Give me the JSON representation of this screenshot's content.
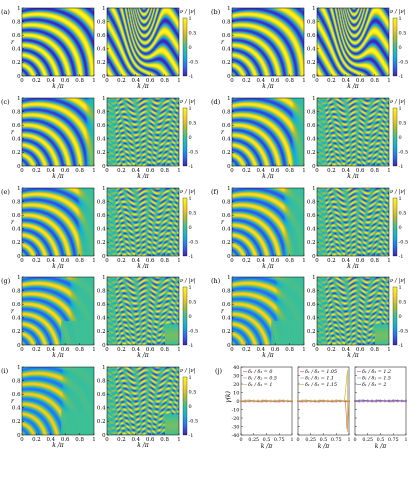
{
  "colors": {
    "cmap": [
      "#3e26a8",
      "#2d6ef4",
      "#15b1d3",
      "#3dbf96",
      "#b1bd2d",
      "#f9cf24",
      "#f9fb14"
    ],
    "bg_teal": "#2fb7b0",
    "axis": "#000000"
  },
  "panels": [
    {
      "label": "(a)",
      "variant": 0
    },
    {
      "label": "(b)",
      "variant": 1
    },
    {
      "label": "(c)",
      "variant": 2
    },
    {
      "label": "(d)",
      "variant": 3
    },
    {
      "label": "(e)",
      "variant": 4
    },
    {
      "label": "(f)",
      "variant": 5
    },
    {
      "label": "(g)",
      "variant": 6
    },
    {
      "label": "(h)",
      "variant": 7
    },
    {
      "label": "(i)",
      "variant": 8
    }
  ],
  "heatmap_axes": {
    "xlabel": "k /π",
    "ylabel": "r",
    "x_ticks": [
      "0",
      "0.2",
      "0.4",
      "0.6",
      "0.8",
      "1"
    ],
    "y_ticks": [
      "0",
      "0.2",
      "0.4",
      "0.6",
      "0.8",
      "1"
    ]
  },
  "colorbar": {
    "title": "ν / |ν|",
    "ticks": [
      "1",
      "0.5",
      "0",
      "-0.5",
      "-1"
    ]
  },
  "panel_j": {
    "label": "(j)",
    "ylabel": "γ(k)",
    "xlabel": "k /π",
    "y_ticks": [
      "40",
      "30",
      "20",
      "10",
      "0",
      "-10",
      "-20",
      "-30",
      "-40"
    ],
    "x_ticks": [
      "0",
      "0.25",
      "0.5",
      "0.75",
      "1"
    ],
    "subplots": [
      {
        "legend": [
          "δ₁ / δ₂ = 0",
          "δ₁ / δ₂ = 0.5",
          "δ₁ / δ₂ = 1"
        ],
        "colors": [
          "#e0505a",
          "#9a9a9a",
          "#c9a82a"
        ],
        "spike": 0
      },
      {
        "legend": [
          "δ₁ / δ₂ = 1.05",
          "δ₁ / δ₂ = 1.1",
          "δ₁ / δ₂ = 1.15"
        ],
        "colors": [
          "#e0505a",
          "#9a9a9a",
          "#c9a82a"
        ],
        "spike": 1
      },
      {
        "legend": [
          "δ₁ / δ₂ = 1.2",
          "δ₁ / δ₂ = 1.5",
          "δ₁ / δ₂ = 2"
        ],
        "colors": [
          "#e0505a",
          "#5aa0d8",
          "#7f4fb0"
        ],
        "spike": 0
      }
    ]
  }
}
